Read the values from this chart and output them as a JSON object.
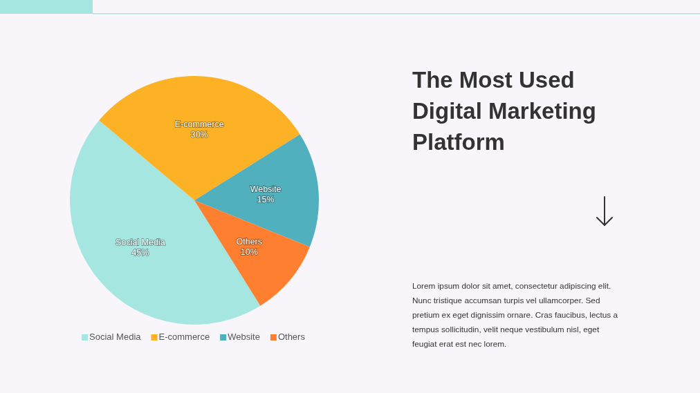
{
  "chart_data": {
    "type": "pie",
    "title": "The Most Used Digital Marketing Platform",
    "categories": [
      "Social Media",
      "E-commerce",
      "Website",
      "Others"
    ],
    "values": [
      45,
      30,
      15,
      10
    ],
    "colors": [
      "#a6e6e0",
      "#fdb124",
      "#50b0be",
      "#fd7f2f"
    ],
    "value_labels": [
      "45%",
      "30%",
      "15%",
      "10%"
    ],
    "legend": "bottom",
    "annotations": [
      "Lorem ipsum dolor sit amet, consectetur adipiscing elit. Nunc tristique accumsan turpis vel ullamcorper. Sed pretium ex eget dignissim ornare. Cras faucibus, lectus a tempus sollicitudin, velit neque vestibulum nisl, eget feugiat erat est nec lorem."
    ]
  }
}
